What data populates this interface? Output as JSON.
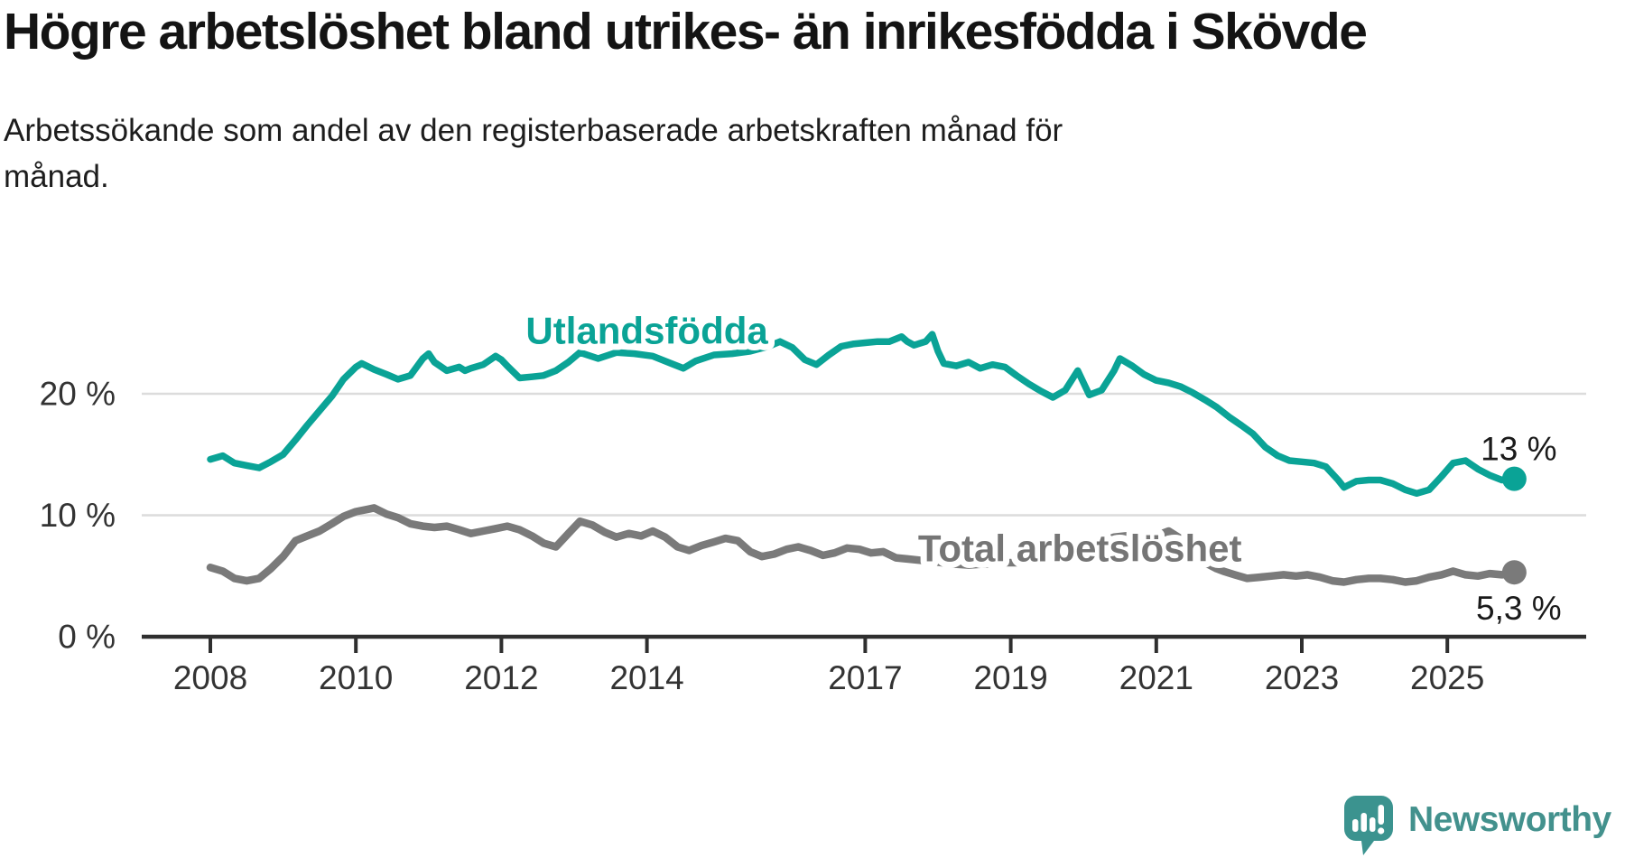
{
  "title": "Högre arbetslöshet bland utrikes- än inrikesfödda i Skövde",
  "subtitle": "Arbetssökande som andel av den registerbaserade arbetskraften månad för månad.",
  "subtitle_lines": [
    "Arbetssökande som andel av den registerbaserade arbetskraften månad för",
    "månad."
  ],
  "branding": {
    "name": "Newsworthy",
    "icon": "newsworthy-speech-bubble-bar-chart-icon",
    "text_color": "#43918d",
    "icon_color": "#3b938f"
  },
  "colors": {
    "foreign_born_line": "#0aa396",
    "total_line": "#7a7a7a",
    "total_label": "#757575",
    "gridline": "#dcdcdc",
    "axis": "#2f2f2f",
    "tick_text": "#333333",
    "annotation_text": "#1a1a1a"
  },
  "chart_data": {
    "type": "line",
    "title": "Högre arbetslöshet bland utrikes- än inrikesfödda i Skövde",
    "subtitle": "Arbetssökande som andel av den registerbaserade arbetskraften månad för månad.",
    "unit": "percent of registered labour force",
    "x_ticks": [
      {
        "year": 2008,
        "label": "2008"
      },
      {
        "year": 2010,
        "label": "2010"
      },
      {
        "year": 2012,
        "label": "2012"
      },
      {
        "year": 2014,
        "label": "2014"
      },
      {
        "year": 2017,
        "label": "2017"
      },
      {
        "year": 2019,
        "label": "2019"
      },
      {
        "year": 2021,
        "label": "2021"
      },
      {
        "year": 2023,
        "label": "2023"
      },
      {
        "year": 2025,
        "label": "2025"
      }
    ],
    "y_ticks": [
      {
        "value": 0,
        "label": "0 %"
      },
      {
        "value": 10,
        "label": "10 %"
      },
      {
        "value": 20,
        "label": "20 %"
      }
    ],
    "xlim": [
      2007.9,
      2026.1
    ],
    "ylim": [
      0,
      26
    ],
    "grid": "horizontal-only",
    "legend_position": "inline-labels",
    "series": [
      {
        "name": "Utlandsfödda",
        "color": "#0aa396",
        "label_pos": [
          2014.0,
          25.2
        ],
        "end_label": "13 %",
        "end_value": 13,
        "end_label_side": "above",
        "points": [
          [
            2008.0,
            14.6
          ],
          [
            2008.17,
            14.9
          ],
          [
            2008.33,
            14.3
          ],
          [
            2008.5,
            14.1
          ],
          [
            2008.67,
            13.9
          ],
          [
            2008.83,
            14.4
          ],
          [
            2009.0,
            15.0
          ],
          [
            2009.17,
            16.2
          ],
          [
            2009.33,
            17.4
          ],
          [
            2009.5,
            18.6
          ],
          [
            2009.67,
            19.8
          ],
          [
            2009.83,
            21.2
          ],
          [
            2010.0,
            22.2
          ],
          [
            2010.08,
            22.5
          ],
          [
            2010.25,
            22.0
          ],
          [
            2010.42,
            21.6
          ],
          [
            2010.58,
            21.2
          ],
          [
            2010.75,
            21.5
          ],
          [
            2010.92,
            22.9
          ],
          [
            2011.0,
            23.3
          ],
          [
            2011.08,
            22.6
          ],
          [
            2011.25,
            21.9
          ],
          [
            2011.42,
            22.2
          ],
          [
            2011.5,
            21.9
          ],
          [
            2011.58,
            22.1
          ],
          [
            2011.75,
            22.4
          ],
          [
            2011.92,
            23.1
          ],
          [
            2012.0,
            22.8
          ],
          [
            2012.08,
            22.3
          ],
          [
            2012.25,
            21.3
          ],
          [
            2012.42,
            21.4
          ],
          [
            2012.58,
            21.5
          ],
          [
            2012.75,
            21.9
          ],
          [
            2012.92,
            22.6
          ],
          [
            2013.08,
            23.4
          ],
          [
            2013.33,
            22.9
          ],
          [
            2013.58,
            23.4
          ],
          [
            2013.83,
            23.3
          ],
          [
            2014.08,
            23.1
          ],
          [
            2014.33,
            22.5
          ],
          [
            2014.5,
            22.1
          ],
          [
            2014.67,
            22.7
          ],
          [
            2014.92,
            23.2
          ],
          [
            2015.17,
            23.3
          ],
          [
            2015.42,
            23.5
          ],
          [
            2015.67,
            23.9
          ],
          [
            2015.83,
            24.3
          ],
          [
            2016.0,
            23.8
          ],
          [
            2016.17,
            22.8
          ],
          [
            2016.33,
            22.4
          ],
          [
            2016.5,
            23.2
          ],
          [
            2016.67,
            23.9
          ],
          [
            2016.83,
            24.1
          ],
          [
            2017.0,
            24.2
          ],
          [
            2017.17,
            24.3
          ],
          [
            2017.33,
            24.3
          ],
          [
            2017.5,
            24.7
          ],
          [
            2017.58,
            24.3
          ],
          [
            2017.67,
            24.0
          ],
          [
            2017.83,
            24.3
          ],
          [
            2017.92,
            24.9
          ],
          [
            2018.0,
            23.5
          ],
          [
            2018.08,
            22.5
          ],
          [
            2018.25,
            22.3
          ],
          [
            2018.42,
            22.6
          ],
          [
            2018.58,
            22.1
          ],
          [
            2018.75,
            22.4
          ],
          [
            2018.92,
            22.2
          ],
          [
            2019.08,
            21.5
          ],
          [
            2019.25,
            20.8
          ],
          [
            2019.42,
            20.2
          ],
          [
            2019.58,
            19.7
          ],
          [
            2019.75,
            20.3
          ],
          [
            2019.92,
            21.9
          ],
          [
            2020.08,
            19.9
          ],
          [
            2020.25,
            20.3
          ],
          [
            2020.42,
            21.9
          ],
          [
            2020.5,
            22.9
          ],
          [
            2020.67,
            22.3
          ],
          [
            2020.83,
            21.6
          ],
          [
            2021.0,
            21.1
          ],
          [
            2021.17,
            20.9
          ],
          [
            2021.33,
            20.6
          ],
          [
            2021.5,
            20.1
          ],
          [
            2021.67,
            19.5
          ],
          [
            2021.83,
            18.9
          ],
          [
            2022.0,
            18.1
          ],
          [
            2022.17,
            17.4
          ],
          [
            2022.33,
            16.7
          ],
          [
            2022.5,
            15.6
          ],
          [
            2022.67,
            14.9
          ],
          [
            2022.83,
            14.5
          ],
          [
            2023.0,
            14.4
          ],
          [
            2023.17,
            14.3
          ],
          [
            2023.33,
            14.0
          ],
          [
            2023.5,
            12.9
          ],
          [
            2023.58,
            12.3
          ],
          [
            2023.75,
            12.8
          ],
          [
            2023.92,
            12.9
          ],
          [
            2024.08,
            12.9
          ],
          [
            2024.25,
            12.6
          ],
          [
            2024.42,
            12.1
          ],
          [
            2024.58,
            11.8
          ],
          [
            2024.75,
            12.1
          ],
          [
            2024.92,
            13.2
          ],
          [
            2025.08,
            14.3
          ],
          [
            2025.25,
            14.5
          ],
          [
            2025.42,
            13.8
          ],
          [
            2025.58,
            13.3
          ],
          [
            2025.75,
            12.9
          ],
          [
            2025.92,
            13.0
          ]
        ]
      },
      {
        "name": "Total arbetslöshet",
        "color": "#7a7a7a",
        "label_pos": [
          2019.95,
          7.3
        ],
        "end_label": "5,3 %",
        "end_value": 5.3,
        "end_label_side": "below",
        "points": [
          [
            2008.0,
            5.7
          ],
          [
            2008.17,
            5.4
          ],
          [
            2008.33,
            4.8
          ],
          [
            2008.5,
            4.6
          ],
          [
            2008.67,
            4.8
          ],
          [
            2008.83,
            5.6
          ],
          [
            2009.0,
            6.6
          ],
          [
            2009.17,
            7.9
          ],
          [
            2009.33,
            8.3
          ],
          [
            2009.5,
            8.7
          ],
          [
            2009.67,
            9.3
          ],
          [
            2009.83,
            9.9
          ],
          [
            2010.0,
            10.3
          ],
          [
            2010.17,
            10.5
          ],
          [
            2010.25,
            10.6
          ],
          [
            2010.42,
            10.1
          ],
          [
            2010.58,
            9.8
          ],
          [
            2010.75,
            9.3
          ],
          [
            2010.92,
            9.1
          ],
          [
            2011.08,
            9.0
          ],
          [
            2011.25,
            9.1
          ],
          [
            2011.42,
            8.8
          ],
          [
            2011.58,
            8.5
          ],
          [
            2011.75,
            8.7
          ],
          [
            2011.92,
            8.9
          ],
          [
            2012.08,
            9.1
          ],
          [
            2012.25,
            8.8
          ],
          [
            2012.42,
            8.3
          ],
          [
            2012.58,
            7.7
          ],
          [
            2012.75,
            7.4
          ],
          [
            2012.92,
            8.5
          ],
          [
            2013.08,
            9.5
          ],
          [
            2013.25,
            9.2
          ],
          [
            2013.42,
            8.6
          ],
          [
            2013.58,
            8.2
          ],
          [
            2013.75,
            8.5
          ],
          [
            2013.92,
            8.3
          ],
          [
            2014.08,
            8.7
          ],
          [
            2014.25,
            8.2
          ],
          [
            2014.42,
            7.4
          ],
          [
            2014.58,
            7.1
          ],
          [
            2014.75,
            7.5
          ],
          [
            2014.92,
            7.8
          ],
          [
            2015.08,
            8.1
          ],
          [
            2015.25,
            7.9
          ],
          [
            2015.42,
            7.0
          ],
          [
            2015.58,
            6.6
          ],
          [
            2015.75,
            6.8
          ],
          [
            2015.92,
            7.2
          ],
          [
            2016.08,
            7.4
          ],
          [
            2016.25,
            7.1
          ],
          [
            2016.42,
            6.7
          ],
          [
            2016.58,
            6.9
          ],
          [
            2016.75,
            7.3
          ],
          [
            2016.92,
            7.2
          ],
          [
            2017.08,
            6.9
          ],
          [
            2017.25,
            7.0
          ],
          [
            2017.42,
            6.5
          ],
          [
            2017.58,
            6.4
          ],
          [
            2017.75,
            6.3
          ],
          [
            2017.92,
            6.2
          ],
          [
            2018.17,
            6.0
          ],
          [
            2018.42,
            5.9
          ],
          [
            2018.67,
            6.0
          ],
          [
            2018.92,
            6.1
          ],
          [
            2019.17,
            6.1
          ],
          [
            2019.42,
            6.2
          ],
          [
            2019.67,
            6.3
          ],
          [
            2019.92,
            6.5
          ],
          [
            2020.08,
            7.0
          ],
          [
            2020.25,
            7.8
          ],
          [
            2020.42,
            8.2
          ],
          [
            2020.58,
            8.3
          ],
          [
            2020.75,
            8.3
          ],
          [
            2020.92,
            8.4
          ],
          [
            2021.08,
            8.5
          ],
          [
            2021.17,
            8.7
          ],
          [
            2021.33,
            8.1
          ],
          [
            2021.5,
            7.0
          ],
          [
            2021.67,
            6.1
          ],
          [
            2021.83,
            5.6
          ],
          [
            2021.92,
            5.4
          ],
          [
            2022.08,
            5.1
          ],
          [
            2022.25,
            4.8
          ],
          [
            2022.42,
            4.9
          ],
          [
            2022.58,
            5.0
          ],
          [
            2022.75,
            5.1
          ],
          [
            2022.92,
            5.0
          ],
          [
            2023.08,
            5.1
          ],
          [
            2023.25,
            4.9
          ],
          [
            2023.42,
            4.6
          ],
          [
            2023.58,
            4.5
          ],
          [
            2023.75,
            4.7
          ],
          [
            2023.92,
            4.8
          ],
          [
            2024.08,
            4.8
          ],
          [
            2024.25,
            4.7
          ],
          [
            2024.42,
            4.5
          ],
          [
            2024.58,
            4.6
          ],
          [
            2024.75,
            4.9
          ],
          [
            2024.92,
            5.1
          ],
          [
            2025.08,
            5.4
          ],
          [
            2025.25,
            5.1
          ],
          [
            2025.42,
            5.0
          ],
          [
            2025.58,
            5.2
          ],
          [
            2025.75,
            5.1
          ],
          [
            2025.92,
            5.3
          ]
        ]
      }
    ]
  }
}
